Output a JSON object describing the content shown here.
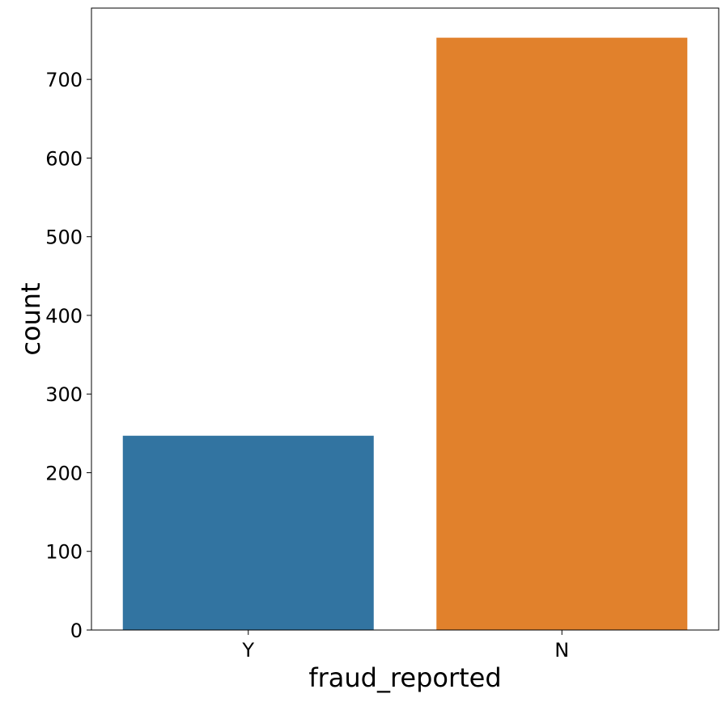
{
  "chart_data": {
    "type": "bar",
    "title": "",
    "xlabel": "fraud_reported",
    "ylabel": "count",
    "categories": [
      "Y",
      "N"
    ],
    "values": [
      247,
      753
    ],
    "colors": [
      "#3274a1",
      "#e1812c"
    ],
    "ylim": [
      0,
      790.65
    ],
    "yticks": [
      0,
      100,
      200,
      300,
      400,
      500,
      600,
      700
    ],
    "grid": false,
    "legend": false
  }
}
